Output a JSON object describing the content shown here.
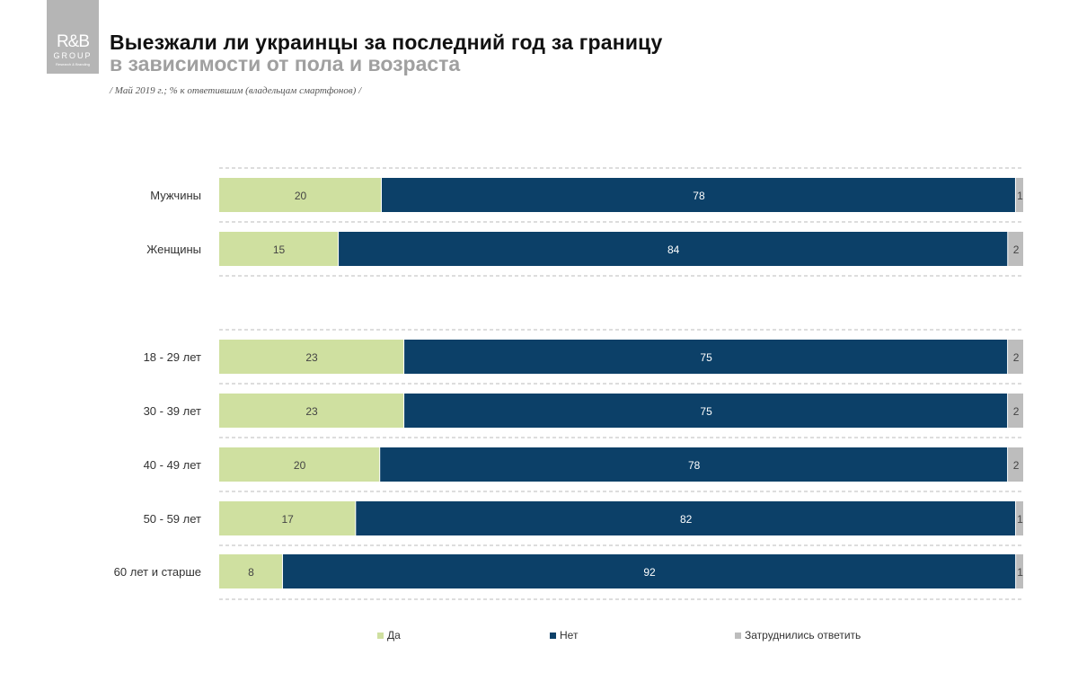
{
  "logo": {
    "line1": "R&B",
    "line2": "GROUP",
    "line3": "Research & Branding"
  },
  "header": {
    "title": "Выезжали ли украинцы за последний год за границу",
    "subtitle": "в зависимости от пола и возраста",
    "note": "/ Май 2019 г.; % к ответившим (владельцам смартфонов) /"
  },
  "chart_data": {
    "type": "bar",
    "orientation": "horizontal",
    "stacked": true,
    "categories": [
      "Мужчины",
      "Женщины",
      "18 - 29 лет",
      "30 - 39 лет",
      "40 - 49 лет",
      "50 - 59 лет",
      "60 лет и старше"
    ],
    "series": [
      {
        "name": "Да",
        "color": "#cfe0a0",
        "values": [
          20,
          15,
          23,
          23,
          20,
          17,
          8
        ]
      },
      {
        "name": "Нет",
        "color": "#0c4068",
        "values": [
          78,
          84,
          75,
          75,
          78,
          82,
          92
        ]
      },
      {
        "name": "Затруднились ответить",
        "color": "#bdbdbd",
        "values": [
          1,
          2,
          2,
          2,
          2,
          1,
          1
        ]
      }
    ],
    "legend_position": "bottom",
    "data_labels": true,
    "grid": false
  }
}
